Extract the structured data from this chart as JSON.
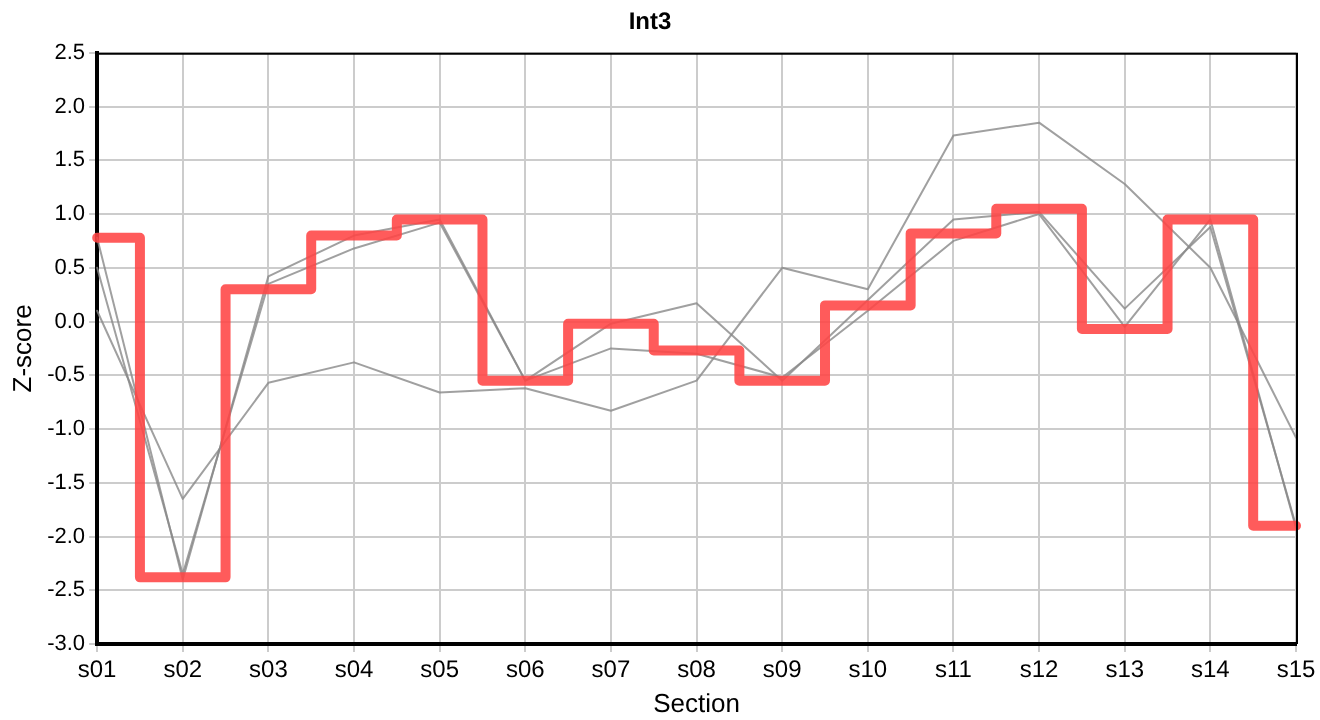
{
  "chart_data": {
    "type": "line",
    "title": "Int3",
    "xlabel": "Section",
    "ylabel": "Z-score",
    "categories": [
      "s01",
      "s02",
      "s03",
      "s04",
      "s05",
      "s06",
      "s07",
      "s08",
      "s09",
      "s10",
      "s11",
      "s12",
      "s13",
      "s14",
      "s15"
    ],
    "ylim": [
      -3,
      2.5
    ],
    "yticks": [
      {
        "value": -3,
        "label": "-3.0"
      },
      {
        "value": -2.5,
        "label": "-2.5"
      },
      {
        "value": -2,
        "label": "-2.0"
      },
      {
        "value": -1.5,
        "label": "-1.5"
      },
      {
        "value": -1,
        "label": "-1.0"
      },
      {
        "value": -0.5,
        "label": "-0.5"
      },
      {
        "value": 0,
        "label": "0.0"
      },
      {
        "value": 0.5,
        "label": "0.5"
      },
      {
        "value": 1,
        "label": "1.0"
      },
      {
        "value": 1.5,
        "label": "1.5"
      },
      {
        "value": 2,
        "label": "2.0"
      },
      {
        "value": 2.5,
        "label": "2.5"
      }
    ],
    "grid": true,
    "legend": false,
    "marker": "none",
    "series": [
      {
        "type": "line",
        "color": "#888888",
        "values": [
          0.1,
          -1.65,
          -0.57,
          -0.38,
          -0.66,
          -0.62,
          -0.83,
          -0.55,
          0.5,
          0.3,
          1.73,
          1.85,
          1.28,
          0.5,
          -1.08
        ]
      },
      {
        "type": "line",
        "color": "#888888",
        "values": [
          0.78,
          -2.4,
          0.42,
          0.8,
          0.95,
          -0.55,
          -0.02,
          0.17,
          -0.55,
          0.2,
          0.95,
          1.02,
          0.12,
          0.88,
          -1.9
        ]
      },
      {
        "type": "line",
        "color": "#888888",
        "values": [
          0.5,
          -2.35,
          0.35,
          0.68,
          0.92,
          -0.55,
          -0.25,
          -0.3,
          -0.52,
          0.1,
          0.75,
          1.0,
          -0.05,
          0.95,
          -1.92
        ]
      },
      {
        "type": "step",
        "color": "#ff4444",
        "values": [
          0.78,
          -2.38,
          0.3,
          0.8,
          0.95,
          -0.55,
          -0.02,
          -0.27,
          -0.55,
          0.15,
          0.82,
          1.05,
          -0.07,
          0.95,
          -1.9
        ]
      }
    ]
  }
}
